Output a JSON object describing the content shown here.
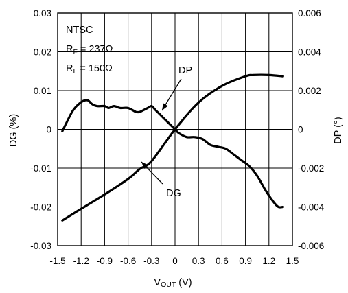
{
  "chart_data": {
    "type": "line",
    "x_axis": {
      "label_main": "V",
      "label_sub": "OUT",
      "label_unit": " (V)",
      "range": [
        -1.5,
        1.5
      ],
      "ticks": [
        -1.5,
        -1.2,
        -0.9,
        -0.6,
        -0.3,
        0,
        0.3,
        0.6,
        0.9,
        1.2,
        1.5
      ],
      "tick_labels": [
        "-1.5",
        "-1.2",
        "-0.9",
        "-0.6",
        "-0.3",
        "0",
        "0.3",
        "0.6",
        "0.9",
        "1.2",
        "1.5"
      ]
    },
    "y_left": {
      "label": "DG (%)",
      "range": [
        -0.03,
        0.03
      ],
      "ticks": [
        -0.03,
        -0.02,
        -0.01,
        0,
        0.01,
        0.02,
        0.03
      ],
      "tick_labels": [
        "-0.03",
        "-0.02",
        "-0.01",
        "0",
        "0.01",
        "0.02",
        "0.03"
      ]
    },
    "y_right": {
      "label": "DP (°)",
      "range": [
        -0.006,
        0.006
      ],
      "ticks": [
        -0.006,
        -0.004,
        -0.002,
        0,
        0.002,
        0.004,
        0.006
      ],
      "tick_labels": [
        "-0.006",
        "-0.004",
        "-0.002",
        "0",
        "0.002",
        "0.004",
        "0.006"
      ]
    },
    "grid": true,
    "annotations": {
      "standard": "NTSC",
      "rf": {
        "main": "R",
        "sub": "F",
        "rest": " = 237Ω"
      },
      "rl": {
        "main": "R",
        "sub": "L",
        "rest": " = 150Ω"
      }
    },
    "series": [
      {
        "name": "DG",
        "axis": "left",
        "x": [
          -1.44,
          -1.2,
          -0.9,
          -0.6,
          -0.45,
          -0.3,
          0,
          0.3,
          0.6,
          0.9,
          1.0,
          1.2,
          1.38
        ],
        "y": [
          -0.0235,
          -0.0205,
          -0.0168,
          -0.0128,
          -0.0102,
          -0.0082,
          0.0,
          0.0069,
          0.0112,
          0.0137,
          0.014,
          0.014,
          0.0137
        ]
      },
      {
        "name": "DP",
        "axis": "right",
        "x": [
          -1.44,
          -1.38,
          -1.3,
          -1.2,
          -1.12,
          -1.06,
          -1.0,
          -0.9,
          -0.85,
          -0.78,
          -0.7,
          -0.6,
          -0.5,
          -0.45,
          -0.4,
          -0.35,
          -0.3,
          -0.25,
          -0.15,
          0.0,
          0.05,
          0.15,
          0.25,
          0.35,
          0.45,
          0.55,
          0.65,
          0.75,
          0.85,
          0.95,
          1.05,
          1.15,
          1.25,
          1.32,
          1.38
        ],
        "y": [
          -0.0001,
          0.0004,
          0.001,
          0.0014,
          0.0015,
          0.0013,
          0.0012,
          0.0012,
          0.0011,
          0.0012,
          0.0011,
          0.0011,
          0.0009,
          0.0009,
          0.001,
          0.0011,
          0.0012,
          0.001,
          0.0006,
          0.0,
          -0.0002,
          -0.0004,
          -0.0004,
          -0.0005,
          -0.0008,
          -0.0009,
          -0.001,
          -0.0013,
          -0.0016,
          -0.0019,
          -0.0024,
          -0.0031,
          -0.0037,
          -0.004,
          -0.004
        ]
      }
    ]
  }
}
